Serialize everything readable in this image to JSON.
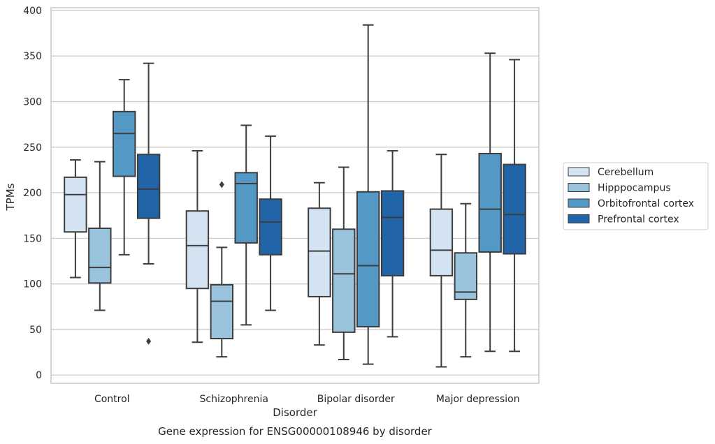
{
  "chart_data": {
    "type": "box",
    "title": "Gene expression for ENSG00000108946 by disorder",
    "xlabel": "Disorder",
    "ylabel": "TPMs",
    "ylim": [
      -9,
      403
    ],
    "yticks": [
      0,
      50,
      100,
      150,
      200,
      250,
      300,
      350,
      400
    ],
    "grid": true,
    "legend_position": "right",
    "categories": [
      "Control",
      "Schizophrenia",
      "Bipolar disorder",
      "Major depression"
    ],
    "series": [
      {
        "name": "Cerebellum",
        "color": "#d3e3f2",
        "boxes": [
          {
            "whislo": 107,
            "q1": 157,
            "med": 198,
            "q3": 217,
            "whishi": 236,
            "fliers": []
          },
          {
            "whislo": 36,
            "q1": 95,
            "med": 142,
            "q3": 180,
            "whishi": 246,
            "fliers": []
          },
          {
            "whislo": 33,
            "q1": 86,
            "med": 136,
            "q3": 183,
            "whishi": 211,
            "fliers": []
          },
          {
            "whislo": 9,
            "q1": 109,
            "med": 137,
            "q3": 182,
            "whishi": 242,
            "fliers": []
          }
        ]
      },
      {
        "name": "Hipppocampus",
        "color": "#9ac4dd",
        "boxes": [
          {
            "whislo": 71,
            "q1": 101,
            "med": 118,
            "q3": 161,
            "whishi": 234,
            "fliers": []
          },
          {
            "whislo": 20,
            "q1": 40,
            "med": 81,
            "q3": 99,
            "whishi": 140,
            "fliers": [
              209
            ]
          },
          {
            "whislo": 17,
            "q1": 47,
            "med": 111,
            "q3": 160,
            "whishi": 228,
            "fliers": []
          },
          {
            "whislo": 20,
            "q1": 83,
            "med": 91,
            "q3": 134,
            "whishi": 188,
            "fliers": []
          }
        ]
      },
      {
        "name": "Orbitofrontal cortex",
        "color": "#5499c6",
        "boxes": [
          {
            "whislo": 132,
            "q1": 218,
            "med": 265,
            "q3": 289,
            "whishi": 324,
            "fliers": []
          },
          {
            "whislo": 55,
            "q1": 145,
            "med": 210,
            "q3": 222,
            "whishi": 274,
            "fliers": []
          },
          {
            "whislo": 12,
            "q1": 53,
            "med": 120,
            "q3": 201,
            "whishi": 384,
            "fliers": []
          },
          {
            "whislo": 26,
            "q1": 135,
            "med": 182,
            "q3": 243,
            "whishi": 353,
            "fliers": []
          }
        ]
      },
      {
        "name": "Prefrontal cortex",
        "color": "#2264a8",
        "boxes": [
          {
            "whislo": 122,
            "q1": 172,
            "med": 204,
            "q3": 242,
            "whishi": 342,
            "fliers": [
              37
            ]
          },
          {
            "whislo": 71,
            "q1": 132,
            "med": 168,
            "q3": 193,
            "whishi": 262,
            "fliers": []
          },
          {
            "whislo": 42,
            "q1": 109,
            "med": 173,
            "q3": 202,
            "whishi": 246,
            "fliers": []
          },
          {
            "whislo": 26,
            "q1": 133,
            "med": 176,
            "q3": 231,
            "whishi": 346,
            "fliers": []
          }
        ]
      }
    ]
  }
}
